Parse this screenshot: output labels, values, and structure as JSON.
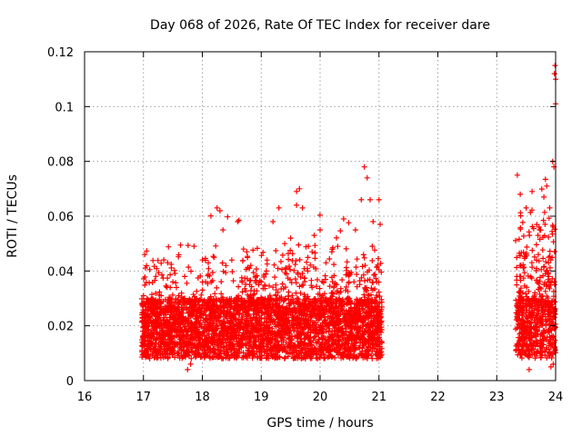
{
  "chart_data": {
    "type": "scatter",
    "title": "Day 068 of 2026, Rate Of TEC Index for receiver dare",
    "xlabel": "GPS time / hours",
    "ylabel": "ROTI / TECUs",
    "xlim": [
      16,
      24
    ],
    "ylim": [
      0,
      0.12
    ],
    "x_ticks": [
      16,
      17,
      18,
      19,
      20,
      21,
      22,
      23,
      24
    ],
    "x_tick_labels": [
      "16",
      "17",
      "18",
      "19",
      "20",
      "21",
      "22",
      "23",
      "24"
    ],
    "y_ticks": [
      0,
      0.02,
      0.04,
      0.06,
      0.08,
      0.1,
      0.12
    ],
    "y_tick_labels": [
      "0",
      "0.02",
      "0.04",
      "0.06",
      "0.08",
      "0.1",
      "0.12"
    ],
    "grid": true,
    "marker": "+",
    "marker_color": "#ff0000",
    "series": [
      {
        "name": "ROTI",
        "segments": [
          {
            "x_start": 16.97,
            "x_end": 21.05
          },
          {
            "x_start": 23.32,
            "x_end": 24.0
          }
        ],
        "points": [
          [
            17.0,
            0.031
          ],
          [
            17.1,
            0.029
          ],
          [
            17.2,
            0.026
          ],
          [
            17.3,
            0.031
          ],
          [
            17.4,
            0.034
          ],
          [
            17.5,
            0.036
          ],
          [
            17.6,
            0.031
          ],
          [
            17.7,
            0.038
          ],
          [
            17.8,
            0.006
          ],
          [
            17.75,
            0.004
          ],
          [
            17.9,
            0.03
          ],
          [
            18.0,
            0.033
          ],
          [
            18.1,
            0.043
          ],
          [
            18.2,
            0.045
          ],
          [
            18.25,
            0.063
          ],
          [
            18.3,
            0.062
          ],
          [
            18.35,
            0.055
          ],
          [
            18.4,
            0.042
          ],
          [
            18.5,
            0.044
          ],
          [
            18.6,
            0.058
          ],
          [
            18.7,
            0.048
          ],
          [
            18.8,
            0.041
          ],
          [
            18.9,
            0.038
          ],
          [
            19.0,
            0.036
          ],
          [
            19.1,
            0.044
          ],
          [
            19.2,
            0.058
          ],
          [
            19.3,
            0.063
          ],
          [
            19.4,
            0.05
          ],
          [
            19.5,
            0.052
          ],
          [
            19.6,
            0.064
          ],
          [
            19.6,
            0.069
          ],
          [
            19.65,
            0.07
          ],
          [
            19.7,
            0.063
          ],
          [
            19.8,
            0.049
          ],
          [
            19.9,
            0.053
          ],
          [
            20.0,
            0.055
          ],
          [
            20.1,
            0.043
          ],
          [
            20.2,
            0.047
          ],
          [
            20.3,
            0.049
          ],
          [
            20.4,
            0.059
          ],
          [
            20.5,
            0.039
          ],
          [
            20.6,
            0.055
          ],
          [
            20.7,
            0.066
          ],
          [
            20.75,
            0.078
          ],
          [
            20.8,
            0.074
          ],
          [
            20.85,
            0.066
          ],
          [
            20.9,
            0.058
          ],
          [
            21.0,
            0.066
          ],
          [
            21.02,
            0.057
          ],
          [
            23.35,
            0.075
          ],
          [
            23.4,
            0.068
          ],
          [
            23.5,
            0.063
          ],
          [
            23.55,
            0.004
          ],
          [
            23.6,
            0.069
          ],
          [
            23.7,
            0.053
          ],
          [
            23.8,
            0.067
          ],
          [
            23.85,
            0.071
          ],
          [
            23.9,
            0.063
          ],
          [
            23.95,
            0.08
          ],
          [
            23.97,
            0.078
          ],
          [
            23.98,
            0.112
          ],
          [
            23.99,
            0.115
          ],
          [
            24.0,
            0.11
          ],
          [
            24.0,
            0.101
          ],
          [
            23.96,
            0.006
          ],
          [
            23.92,
            0.005
          ]
        ],
        "typical_band": {
          "low": 0.008,
          "high": 0.03
        }
      }
    ]
  }
}
